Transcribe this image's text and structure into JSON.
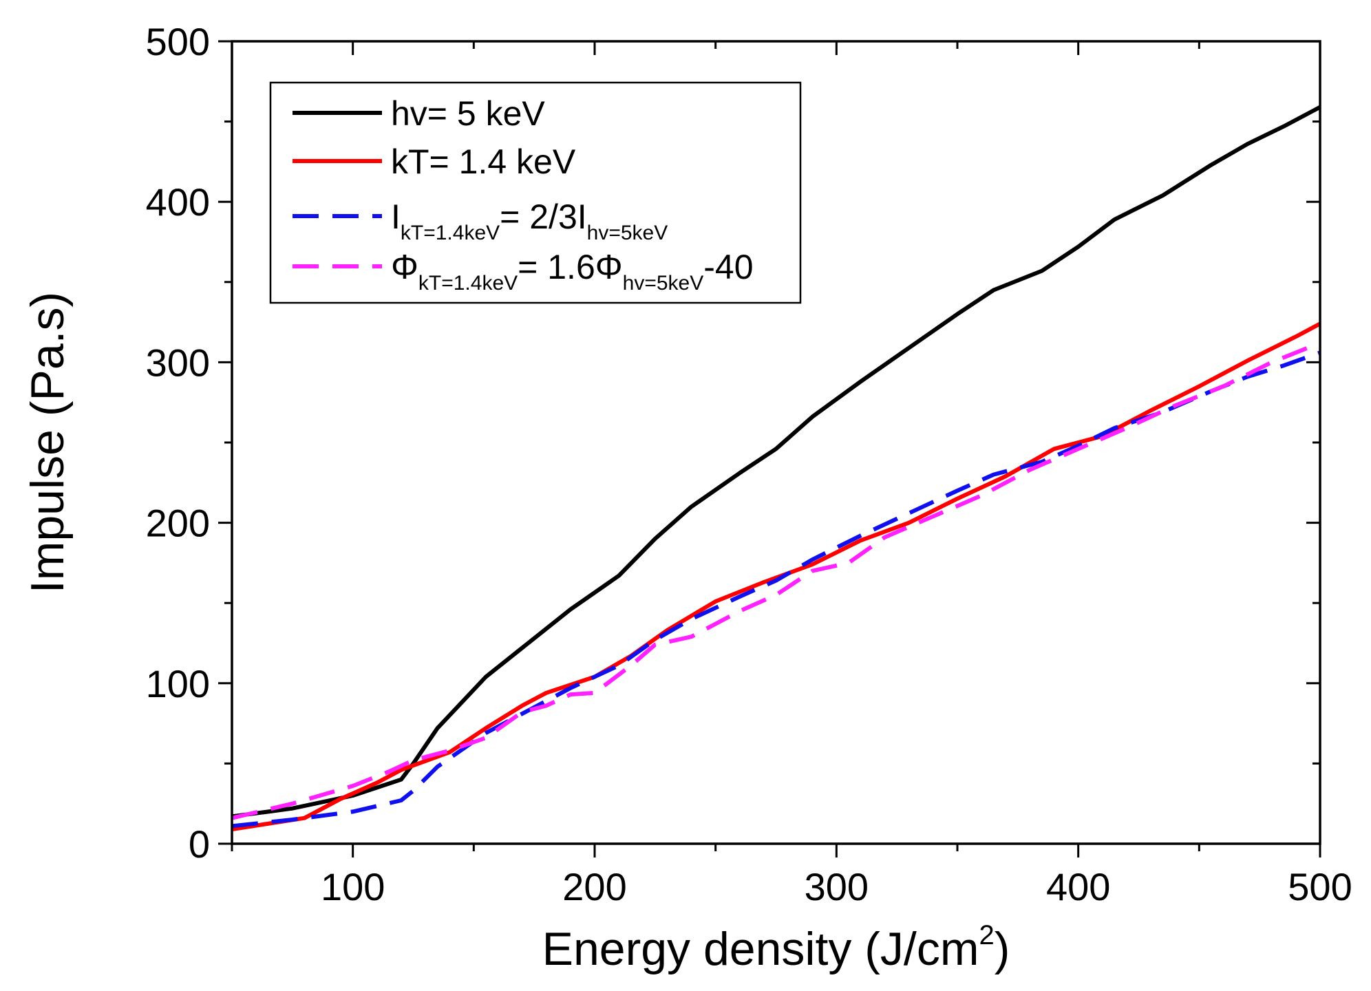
{
  "chart_data": {
    "type": "line",
    "title": "",
    "xlabel": "Energy density (J/cm",
    "xlabel_sup": "2",
    "xlabel_end": ")",
    "ylabel": "Impulse (Pa.s)",
    "xlim": [
      50,
      500
    ],
    "ylim": [
      0,
      500
    ],
    "xticks": [
      100,
      200,
      300,
      400,
      500
    ],
    "yticks": [
      0,
      100,
      200,
      300,
      400,
      500
    ],
    "grid": false,
    "legend_position": "top-left",
    "series": [
      {
        "name": "hv= 5  keV",
        "color": "#000000",
        "dash": "solid",
        "legend": {
          "parts": [
            {
              "text": "hv= 5  keV"
            }
          ]
        },
        "x": [
          50,
          75,
          100,
          120,
          125,
          135,
          155,
          175,
          190,
          210,
          225,
          240,
          260,
          275,
          290,
          310,
          330,
          350,
          365,
          385,
          400,
          415,
          435,
          455,
          470,
          485,
          500
        ],
        "y": [
          17,
          22,
          30,
          40,
          50,
          72,
          104,
          128,
          146,
          167,
          190,
          210,
          231,
          246,
          266,
          288,
          309,
          330,
          345,
          357,
          372,
          389,
          404,
          423,
          436,
          447,
          459
        ]
      },
      {
        "name": "kT= 1.4  keV",
        "color": "#ff0000",
        "dash": "solid",
        "legend": {
          "parts": [
            {
              "text": "kT= 1.4  keV"
            }
          ]
        },
        "x": [
          50,
          80,
          95,
          110,
          120,
          140,
          155,
          170,
          180,
          200,
          215,
          230,
          250,
          270,
          290,
          310,
          330,
          350,
          370,
          390,
          410,
          430,
          450,
          470,
          490,
          500
        ],
        "y": [
          9,
          16,
          28,
          38,
          46,
          57,
          72,
          86,
          94,
          104,
          117,
          133,
          151,
          163,
          174,
          189,
          200,
          215,
          229,
          246,
          254,
          270,
          285,
          301,
          316,
          324
        ]
      },
      {
        "name": "I_{kT=1.4keV}= 2/3I_{hv=5keV}",
        "color": "#1010ee",
        "dash": "long",
        "legend": {
          "parts": [
            {
              "text": "I"
            },
            {
              "text": "kT=1.4keV",
              "sub": true
            },
            {
              "text": "=  2/3I"
            },
            {
              "text": "hv=5keV",
              "sub": true
            }
          ]
        },
        "x": [
          50,
          75,
          100,
          120,
          125,
          135,
          155,
          175,
          190,
          210,
          225,
          240,
          260,
          275,
          290,
          310,
          330,
          350,
          365,
          385,
          400,
          415,
          435,
          455,
          470,
          485,
          500
        ],
        "y": [
          11,
          15,
          20,
          27,
          33,
          48,
          69,
          85,
          97,
          111,
          127,
          140,
          154,
          164,
          177,
          192,
          206,
          220,
          230,
          238,
          248,
          259,
          269,
          282,
          291,
          298,
          306
        ]
      },
      {
        "name": "Φ_{kT=1.4keV}= 1.6Φ_{hv=5keV}-40",
        "color": "#ff22ff",
        "dash": "long",
        "legend": {
          "parts": [
            {
              "text": "Φ"
            },
            {
              "text": "kT=1.4keV",
              "sub": true
            },
            {
              "text": "=  1.6Φ"
            },
            {
              "text": "hv=5keV",
              "sub": true
            },
            {
              "text": "-40"
            }
          ]
        },
        "x": [
          50,
          75,
          100,
          115,
          125,
          140,
          155,
          170,
          180,
          190,
          200,
          215,
          225,
          240,
          260,
          275,
          290,
          305,
          320,
          340,
          360,
          380,
          400,
          420,
          440,
          460,
          480,
          495
        ],
        "y": [
          16,
          25,
          36,
          45,
          52,
          58,
          66,
          82,
          86,
          93,
          94,
          111,
          124,
          129,
          145,
          155,
          170,
          175,
          191,
          204,
          217,
          233,
          246,
          259,
          273,
          285,
          300,
          309
        ]
      }
    ]
  }
}
